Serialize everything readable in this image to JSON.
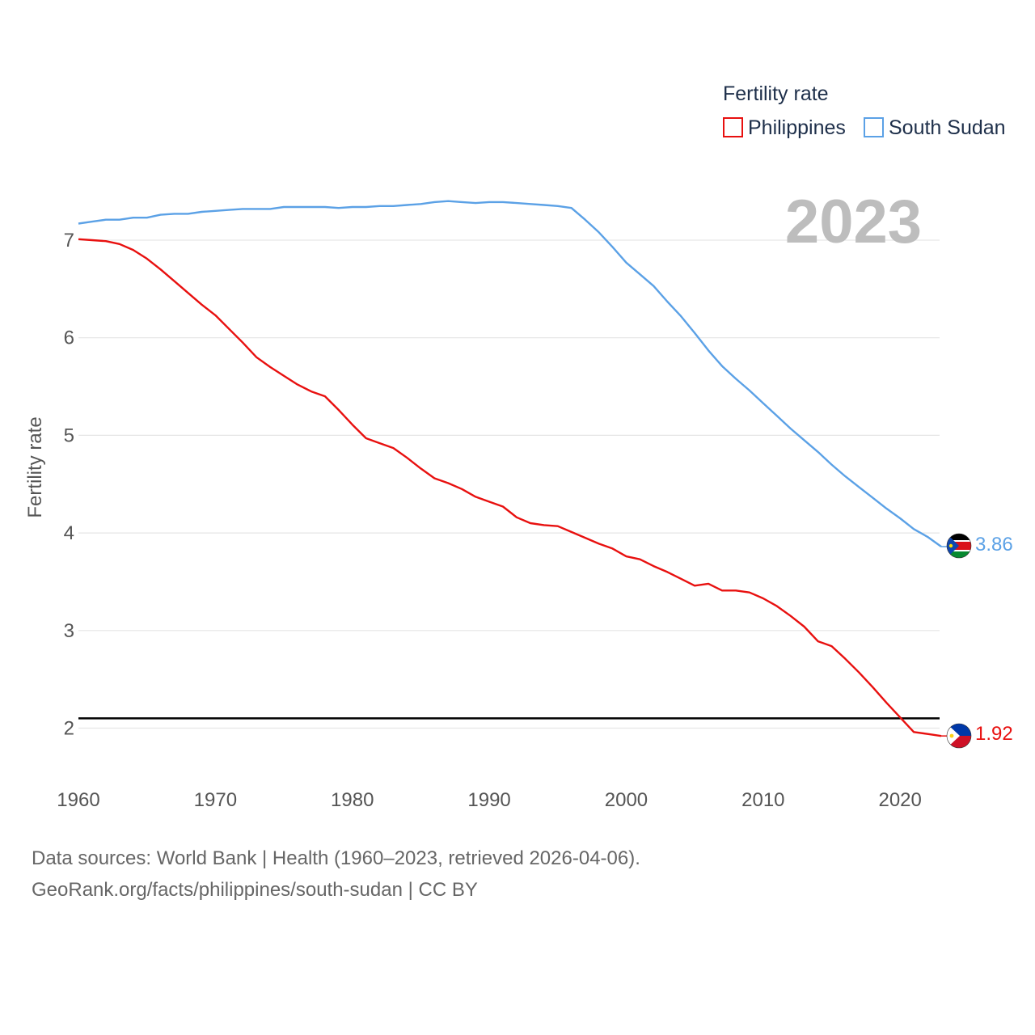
{
  "chart_data": {
    "type": "line",
    "title": "",
    "ylabel": "Fertility rate",
    "xlabel": "",
    "year_label": "2023",
    "legend": {
      "title": "Fertility rate",
      "position": "top-right"
    },
    "xlim": [
      1960,
      2023
    ],
    "ylim": [
      1.5,
      7.5
    ],
    "x_ticks": [
      1960,
      1970,
      1980,
      1990,
      2000,
      2010,
      2020
    ],
    "y_ticks": [
      2,
      3,
      4,
      5,
      6,
      7
    ],
    "reference_line": {
      "value": 2.1
    },
    "x": [
      1960,
      1961,
      1962,
      1963,
      1964,
      1965,
      1966,
      1967,
      1968,
      1969,
      1970,
      1971,
      1972,
      1973,
      1974,
      1975,
      1976,
      1977,
      1978,
      1979,
      1980,
      1981,
      1982,
      1983,
      1984,
      1985,
      1986,
      1987,
      1988,
      1989,
      1990,
      1991,
      1992,
      1993,
      1994,
      1995,
      1996,
      1997,
      1998,
      1999,
      2000,
      2001,
      2002,
      2003,
      2004,
      2005,
      2006,
      2007,
      2008,
      2009,
      2010,
      2011,
      2012,
      2013,
      2014,
      2015,
      2016,
      2017,
      2018,
      2019,
      2020,
      2021,
      2022,
      2023
    ],
    "series": [
      {
        "name": "Philippines",
        "color": "#e8100f",
        "end_label": "1.92",
        "values": [
          7.01,
          7.0,
          6.99,
          6.96,
          6.9,
          6.81,
          6.7,
          6.58,
          6.46,
          6.34,
          6.23,
          6.09,
          5.95,
          5.8,
          5.7,
          5.61,
          5.52,
          5.45,
          5.4,
          5.26,
          5.11,
          4.97,
          4.92,
          4.87,
          4.77,
          4.66,
          4.56,
          4.51,
          4.45,
          4.37,
          4.32,
          4.27,
          4.16,
          4.1,
          4.08,
          4.07,
          4.01,
          3.95,
          3.89,
          3.84,
          3.76,
          3.73,
          3.66,
          3.6,
          3.53,
          3.46,
          3.48,
          3.41,
          3.41,
          3.39,
          3.33,
          3.25,
          3.15,
          3.04,
          2.89,
          2.84,
          2.71,
          2.57,
          2.42,
          2.26,
          2.11,
          1.96,
          1.94,
          1.92
        ]
      },
      {
        "name": "South Sudan",
        "color": "#5ba1e6",
        "end_label": "3.86",
        "values": [
          7.17,
          7.19,
          7.21,
          7.21,
          7.23,
          7.23,
          7.26,
          7.27,
          7.27,
          7.29,
          7.3,
          7.31,
          7.32,
          7.32,
          7.32,
          7.34,
          7.34,
          7.34,
          7.34,
          7.33,
          7.34,
          7.34,
          7.35,
          7.35,
          7.36,
          7.37,
          7.39,
          7.4,
          7.39,
          7.38,
          7.39,
          7.39,
          7.38,
          7.37,
          7.36,
          7.35,
          7.33,
          7.21,
          7.08,
          6.93,
          6.77,
          6.65,
          6.53,
          6.37,
          6.22,
          6.05,
          5.87,
          5.71,
          5.58,
          5.46,
          5.33,
          5.2,
          5.07,
          4.95,
          4.83,
          4.7,
          4.58,
          4.47,
          4.36,
          4.25,
          4.15,
          4.04,
          3.96,
          3.86
        ]
      }
    ]
  },
  "footer": {
    "line1": "Data sources: World Bank | Health (1960–2023, retrieved 2026-04-06).",
    "line2": "GeoRank.org/facts/philippines/south-sudan | CC BY"
  }
}
